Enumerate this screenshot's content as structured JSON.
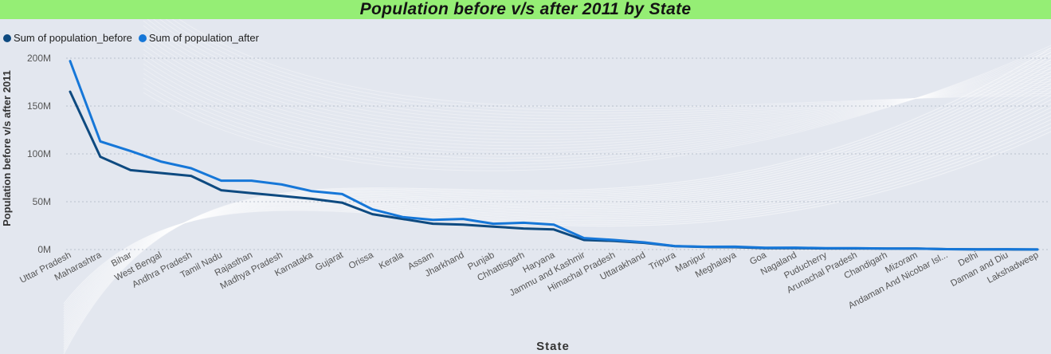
{
  "colors": {
    "title_bar": "#95ee75",
    "background": "#e3e7ef",
    "series_before": "#0e4a80",
    "series_after": "#1677d8"
  },
  "chart_data": {
    "type": "line",
    "title": "Population before v/s after 2011 by State",
    "xlabel": "State",
    "ylabel": "Population before v/s after 2011",
    "ylim": [
      0,
      200000000
    ],
    "yticks": [
      "0M",
      "50M",
      "100M",
      "150M",
      "200M"
    ],
    "legend_position": "top-left",
    "grid": "horizontal dotted",
    "categories": [
      "Uttar Pradesh",
      "Maharashtra",
      "Bihar",
      "West Bengal",
      "Andhra Pradesh",
      "Tamil Nadu",
      "Rajasthan",
      "Madhya Pradesh",
      "Karnataka",
      "Gujarat",
      "Orissa",
      "Kerala",
      "Assam",
      "Jharkhand",
      "Punjab",
      "Chhattisgarh",
      "Haryana",
      "Jammu and Kashmir",
      "Himachal Pradesh",
      "Uttarakhand",
      "Tripura",
      "Manipur",
      "Meghalaya",
      "Goa",
      "Nagaland",
      "Puducherry",
      "Arunachal Pradesh",
      "Chandigarh",
      "Mizoram",
      "Andaman And Nicobar Isl...",
      "Delhi",
      "Daman and Diu",
      "Lakshadweep"
    ],
    "series": [
      {
        "name": "Sum of population_before",
        "values": [
          165,
          97,
          83,
          80,
          77,
          62,
          59,
          56,
          53,
          49,
          37,
          32,
          27,
          26,
          24,
          22,
          21,
          10,
          9,
          7,
          3.5,
          2.7,
          2.5,
          1.5,
          1.5,
          1.2,
          1.2,
          1.1,
          1.1,
          0.4,
          0.2,
          0.2,
          0.1
        ]
      },
      {
        "name": "Sum of population_after",
        "values": [
          197,
          113,
          103,
          92,
          85,
          72,
          72,
          68,
          61,
          58,
          42,
          34,
          31,
          32,
          27,
          28,
          26,
          12,
          10,
          7.5,
          3.7,
          2.9,
          3.0,
          1.8,
          2.0,
          1.4,
          1.4,
          1.1,
          1.1,
          0.4,
          0.2,
          0.3,
          0.1
        ]
      }
    ]
  }
}
